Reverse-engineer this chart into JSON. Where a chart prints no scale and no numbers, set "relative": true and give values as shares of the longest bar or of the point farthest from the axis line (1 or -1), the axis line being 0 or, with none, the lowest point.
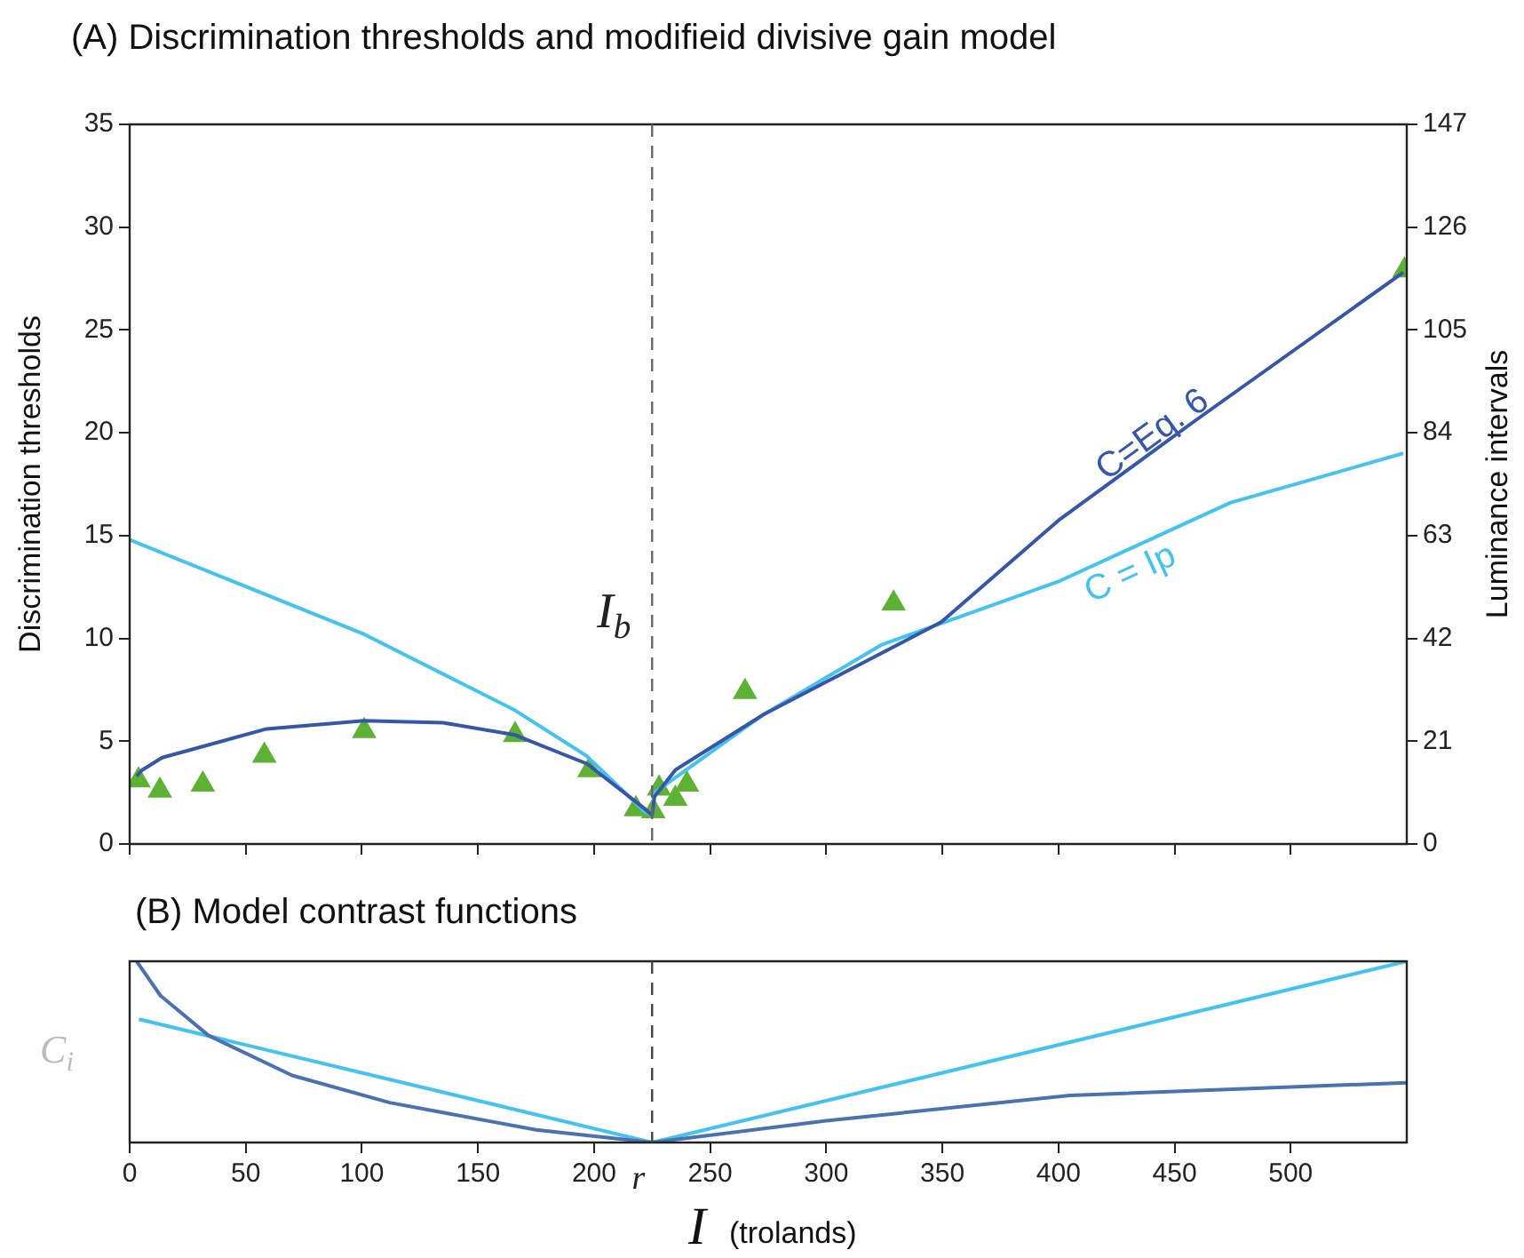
{
  "chart_data": [
    {
      "type": "line",
      "title": "(A) Discrimination thresholds and modifieid divisive gain model",
      "ylabel": "Discrimination thresholds",
      "y2label": "Luminance intervals",
      "xlim": [
        0,
        550
      ],
      "xticks": [
        0,
        50,
        100,
        150,
        200,
        250,
        300,
        350,
        400,
        450,
        500
      ],
      "ylim": [
        0,
        35
      ],
      "yticks": [
        0,
        5,
        10,
        15,
        20,
        25,
        30,
        35
      ],
      "y2lim": [
        0,
        147
      ],
      "y2ticks": [
        0,
        21,
        42,
        63,
        84,
        105,
        126,
        147
      ],
      "tick_labels": "y",
      "legend": false,
      "ref_lines": [
        {
          "axis": "x",
          "value": 225,
          "label": "I$_{b}$",
          "line_style": "dashed",
          "color": "#666666"
        }
      ],
      "series": [
        {
          "name": "C=Eq. 6",
          "color": "#3656a8",
          "x": [
            3,
            5.4,
            14,
            59,
            101,
            135,
            166,
            197,
            222,
            225,
            226,
            235,
            273,
            349.6,
            400.7,
            459,
            548.5
          ],
          "values": [
            3.3,
            3.6,
            4.2,
            5.6,
            6.0,
            5.9,
            5.3,
            3.9,
            1.7,
            1.4,
            2.3,
            3.6,
            6.3,
            10.8,
            15.8,
            20.6,
            27.8
          ]
        },
        {
          "name": "C = Ip",
          "color": "#45c3ef",
          "x": [
            0,
            101,
            166,
            196.6,
            221.6,
            225,
            226,
            273,
            324,
            400.7,
            474,
            548.5
          ],
          "values": [
            14.8,
            10.2,
            6.5,
            4.3,
            1.6,
            1.4,
            2.5,
            6.3,
            9.7,
            12.8,
            16.6,
            19.0
          ]
        },
        {
          "type": "scatter",
          "marker": "triangle",
          "color": "#5db234",
          "x": [
            3.8,
            13,
            31.5,
            58,
            101,
            166,
            198,
            218,
            225.5,
            228,
            235,
            240,
            265,
            329,
            549
          ],
          "values": [
            3.1,
            2.6,
            2.9,
            4.3,
            5.5,
            5.3,
            3.6,
            1.7,
            1.6,
            2.7,
            2.2,
            2.9,
            7.4,
            11.7,
            27.9
          ]
        }
      ]
    },
    {
      "type": "line",
      "title": "(B) Model contrast functions",
      "xlabel": "I (trolands)",
      "ylabel": "C$_{i}$",
      "relative": true,
      "xlim": [
        0,
        550
      ],
      "xticks": [
        0,
        50,
        100,
        150,
        200,
        250,
        300,
        350,
        400,
        450,
        500
      ],
      "tick_labels": "x",
      "legend": false,
      "ref_lines": [
        {
          "axis": "x",
          "value": 225,
          "label": "r",
          "line_style": "dashed",
          "color": "#444444"
        }
      ],
      "series": [
        {
          "color": "#4a72b0",
          "x": [
            3,
            13.3,
            34,
            70,
            112,
            175,
            225,
            300,
            405,
            550
          ],
          "values": [
            1.0,
            0.81,
            0.59,
            0.37,
            0.22,
            0.07,
            0,
            0.12,
            0.26,
            0.33
          ]
        },
        {
          "color": "#45c3ef",
          "x": [
            4,
            225,
            550
          ],
          "values": [
            0.68,
            0,
            1.0
          ]
        }
      ]
    }
  ]
}
